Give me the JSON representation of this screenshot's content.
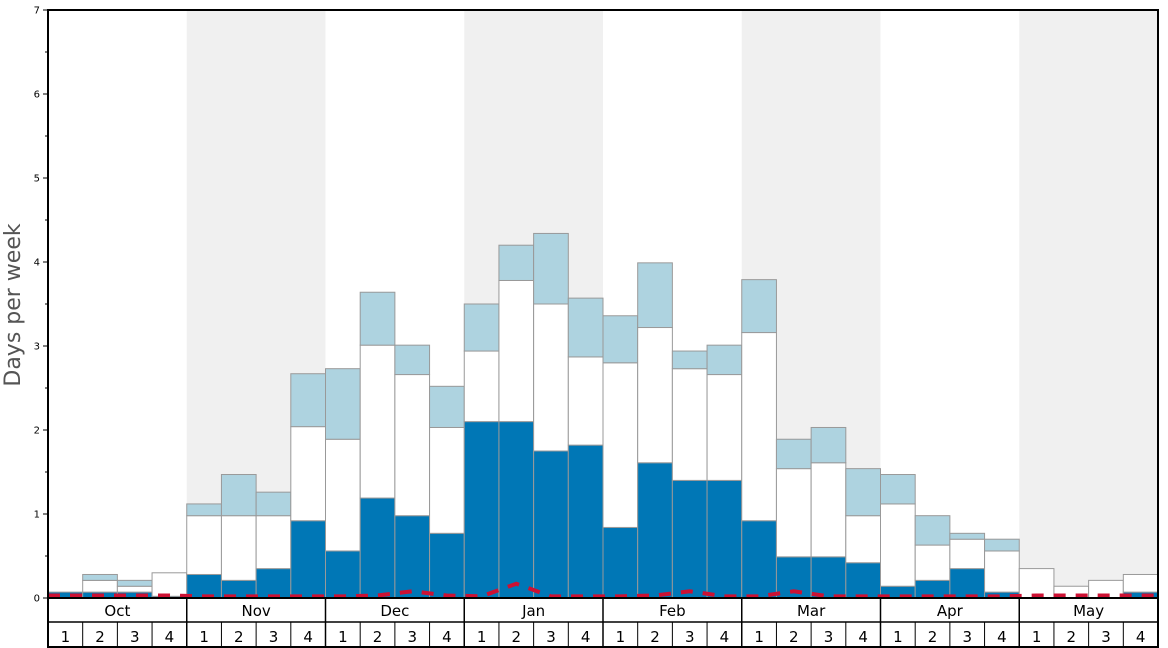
{
  "chart_data": {
    "type": "bar",
    "ylabel": "Days per week",
    "ylim": [
      0,
      7
    ],
    "yticks": [
      "0",
      "1",
      "2",
      "3",
      "4",
      "5",
      "6",
      "7"
    ],
    "months": [
      "Oct",
      "Nov",
      "Dec",
      "Jan",
      "Feb",
      "Mar",
      "Apr",
      "May"
    ],
    "week_labels": [
      "1",
      "2",
      "3",
      "4"
    ],
    "colors": {
      "bottom": "#0077b6",
      "middle": "#ffffff",
      "top": "#aed3e0",
      "line": "#cc1133",
      "shade": "#f0f0f0"
    },
    "series": [
      {
        "values": [
          0.07,
          0.07,
          0.07,
          0.02,
          0.28,
          0.21,
          0.35,
          0.92,
          0.56,
          1.19,
          0.98,
          0.77,
          2.1,
          2.1,
          1.75,
          1.82,
          0.84,
          1.61,
          1.4,
          1.4,
          0.92,
          0.49,
          0.49,
          0.42,
          0.14,
          0.21,
          0.35,
          0.07,
          0.0,
          0.0,
          0.0,
          0.07
        ]
      },
      {
        "values": [
          0.0,
          0.14,
          0.07,
          0.28,
          0.7,
          0.77,
          0.63,
          1.12,
          1.33,
          1.82,
          1.68,
          1.26,
          0.84,
          1.68,
          1.75,
          1.05,
          1.96,
          1.61,
          1.33,
          1.26,
          2.24,
          1.05,
          1.12,
          0.56,
          0.98,
          0.42,
          0.35,
          0.49,
          0.35,
          0.14,
          0.21,
          0.21
        ]
      },
      {
        "values": [
          0.0,
          0.07,
          0.07,
          0.0,
          0.14,
          0.49,
          0.28,
          0.63,
          0.84,
          0.63,
          0.35,
          0.49,
          0.56,
          0.42,
          0.84,
          0.7,
          0.56,
          0.77,
          0.21,
          0.35,
          0.63,
          0.35,
          0.42,
          0.56,
          0.35,
          0.35,
          0.07,
          0.14,
          0.0,
          0.0,
          0.0,
          0.0
        ]
      }
    ],
    "line_values": [
      0.03,
      0.03,
      0.03,
      0.03,
      0.02,
      0.02,
      0.02,
      0.02,
      0.02,
      0.03,
      0.08,
      0.03,
      0.02,
      0.17,
      0.02,
      0.02,
      0.02,
      0.03,
      0.08,
      0.02,
      0.02,
      0.08,
      0.02,
      0.02,
      0.02,
      0.02,
      0.02,
      0.02,
      0.03,
      0.03,
      0.03,
      0.03
    ]
  }
}
